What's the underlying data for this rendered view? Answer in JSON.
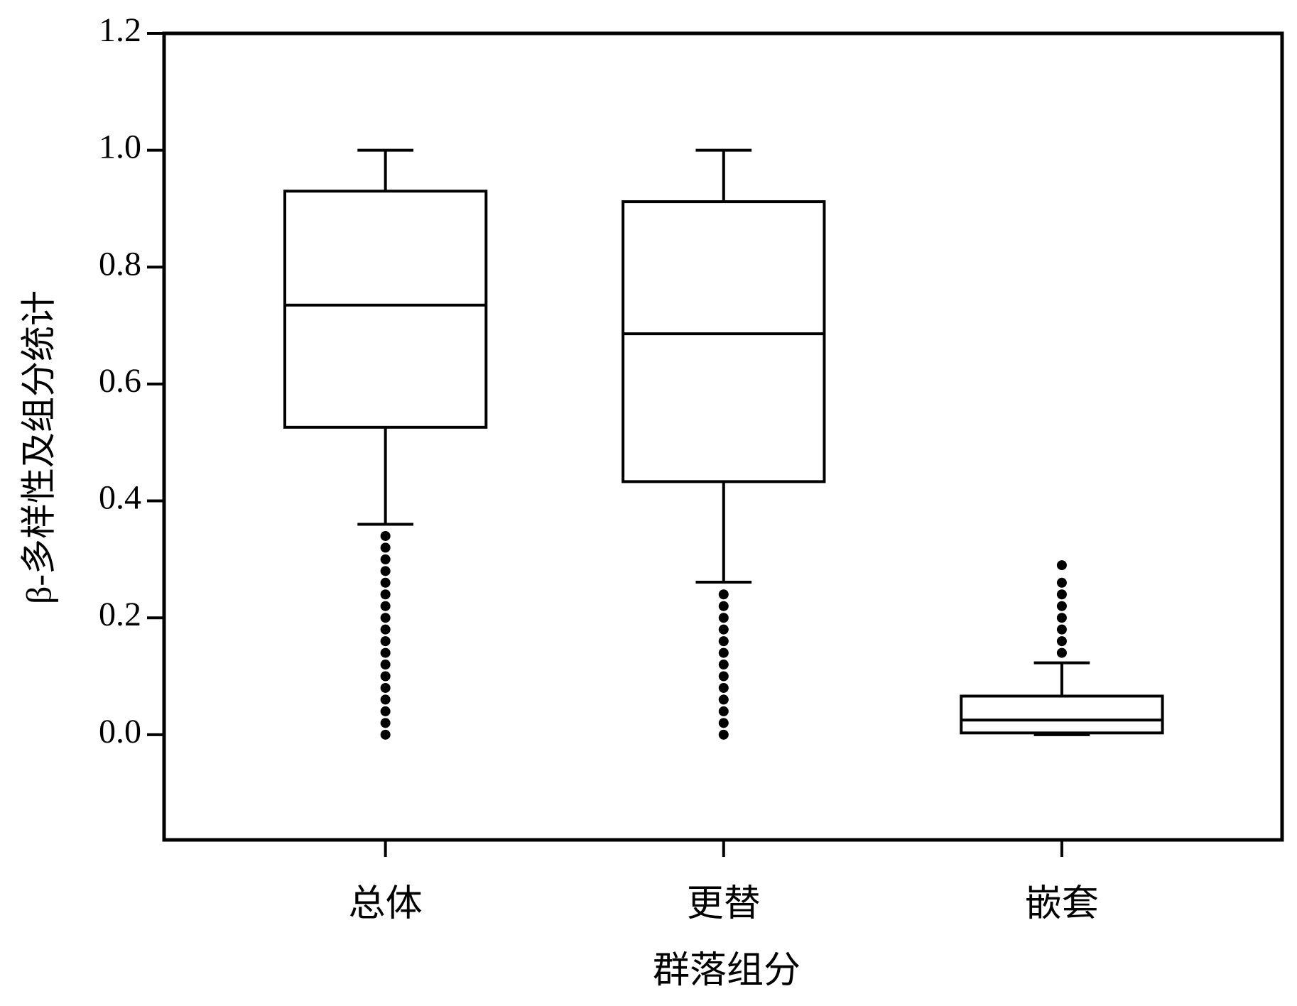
{
  "chart_data": {
    "type": "box",
    "xlabel": "群落组分",
    "ylabel": "β-多样性及组分统计",
    "categories": [
      "总体",
      "更替",
      "嵌套"
    ],
    "boxes": [
      {
        "whisker_low": 0.36,
        "q1": 0.526,
        "median": 0.735,
        "q3": 0.93,
        "whisker_high": 1.0,
        "outliers": [
          0.34,
          0.32,
          0.3,
          0.28,
          0.26,
          0.24,
          0.22,
          0.2,
          0.18,
          0.16,
          0.14,
          0.12,
          0.1,
          0.08,
          0.06,
          0.04,
          0.02,
          0.0
        ]
      },
      {
        "whisker_low": 0.261,
        "q1": 0.433,
        "median": 0.686,
        "q3": 0.912,
        "whisker_high": 1.0,
        "outliers": [
          0.24,
          0.22,
          0.2,
          0.18,
          0.16,
          0.14,
          0.12,
          0.1,
          0.08,
          0.06,
          0.04,
          0.02,
          0.0
        ]
      },
      {
        "whisker_low": 0.0,
        "q1": 0.003,
        "median": 0.025,
        "q3": 0.066,
        "whisker_high": 0.123,
        "outliers": [
          0.14,
          0.16,
          0.18,
          0.2,
          0.22,
          0.24,
          0.26,
          0.29
        ]
      }
    ],
    "color": "#000000",
    "ylim": [
      -0.18,
      1.2
    ],
    "yticks": [
      {
        "value": 0,
        "label": "0.0"
      },
      {
        "value": 0.2,
        "label": "0.2"
      },
      {
        "value": 0.4,
        "label": "0.4"
      },
      {
        "value": 0.6,
        "label": "0.6"
      },
      {
        "value": 0.8,
        "label": "0.8"
      },
      {
        "value": 1,
        "label": "1.0"
      },
      {
        "value": 1.2,
        "label": "1.2"
      }
    ]
  }
}
